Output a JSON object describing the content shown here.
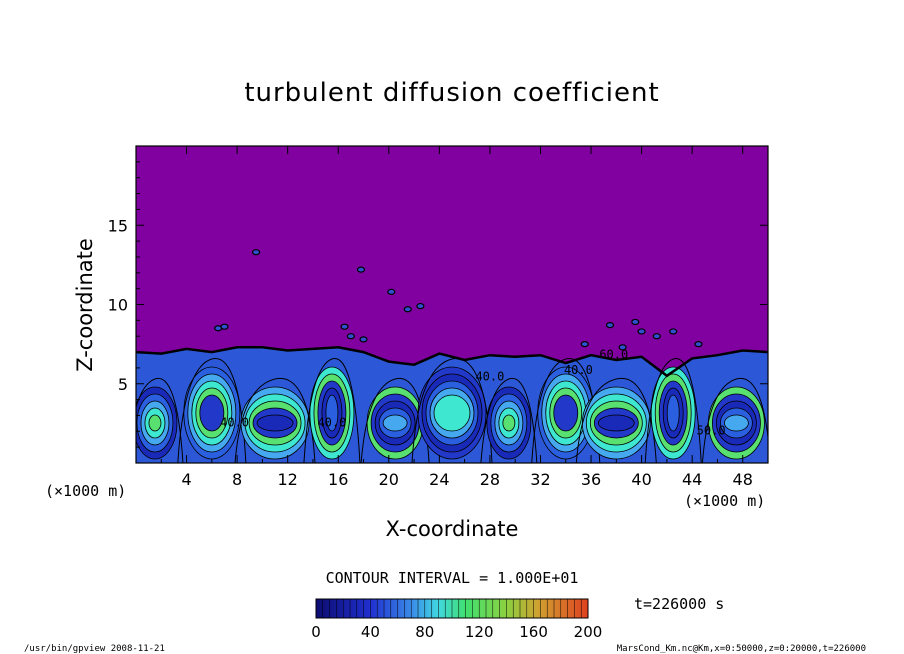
{
  "chart_data": {
    "type": "heatmap",
    "title": "turbulent diffusion coefficient",
    "xlabel": "X-coordinate",
    "ylabel": "Z-coordinate",
    "x_unit_left": "(×1000 m)",
    "x_unit_right": "(×1000 m)",
    "xlim": [
      0,
      50
    ],
    "ylim": [
      0,
      20
    ],
    "x_ticks": [
      "4",
      "8",
      "12",
      "16",
      "20",
      "24",
      "28",
      "32",
      "36",
      "40",
      "44",
      "48"
    ],
    "x_tick_values": [
      4,
      8,
      12,
      16,
      20,
      24,
      28,
      32,
      36,
      40,
      44,
      48
    ],
    "y_ticks": [
      "5",
      "10",
      "15"
    ],
    "y_tick_values": [
      5,
      10,
      15
    ],
    "contour_interval": "CONTOUR INTERVAL = 1.000E+01",
    "contour_labels": [
      "40.0",
      "40.0",
      "40.0",
      "60.0",
      "50.0",
      "40.0"
    ],
    "mixed_layer_top": [
      [
        0,
        7.0
      ],
      [
        2,
        6.9
      ],
      [
        4,
        7.2
      ],
      [
        6,
        7.0
      ],
      [
        8,
        7.3
      ],
      [
        10,
        7.3
      ],
      [
        12,
        7.1
      ],
      [
        14,
        7.2
      ],
      [
        16,
        7.3
      ],
      [
        18,
        7.0
      ],
      [
        20,
        6.4
      ],
      [
        22,
        6.2
      ],
      [
        24,
        6.9
      ],
      [
        26,
        6.5
      ],
      [
        28,
        6.8
      ],
      [
        30,
        6.7
      ],
      [
        32,
        6.8
      ],
      [
        34,
        6.3
      ],
      [
        36,
        6.8
      ],
      [
        38,
        6.5
      ],
      [
        40,
        6.7
      ],
      [
        42,
        5.5
      ],
      [
        44,
        6.6
      ],
      [
        46,
        6.8
      ],
      [
        48,
        7.1
      ],
      [
        50,
        7.0
      ]
    ],
    "colorbar": {
      "min": 0,
      "max": 200,
      "ticks": [
        "0",
        "40",
        "80",
        "120",
        "160",
        "200"
      ],
      "colors": [
        "#7c00a8",
        "#1a1acc",
        "#2f6fe6",
        "#4fb4ee",
        "#3ef0c8",
        "#50e050",
        "#d0e040",
        "#e09030",
        "#e04020"
      ]
    },
    "background_color": "#8000a0",
    "time_label": "t=226000 s"
  },
  "footer": {
    "left": "/usr/bin/gpview  2008-11-21",
    "right": "MarsCond_Km.nc@Km,x=0:50000,z=0:20000,t=226000"
  }
}
